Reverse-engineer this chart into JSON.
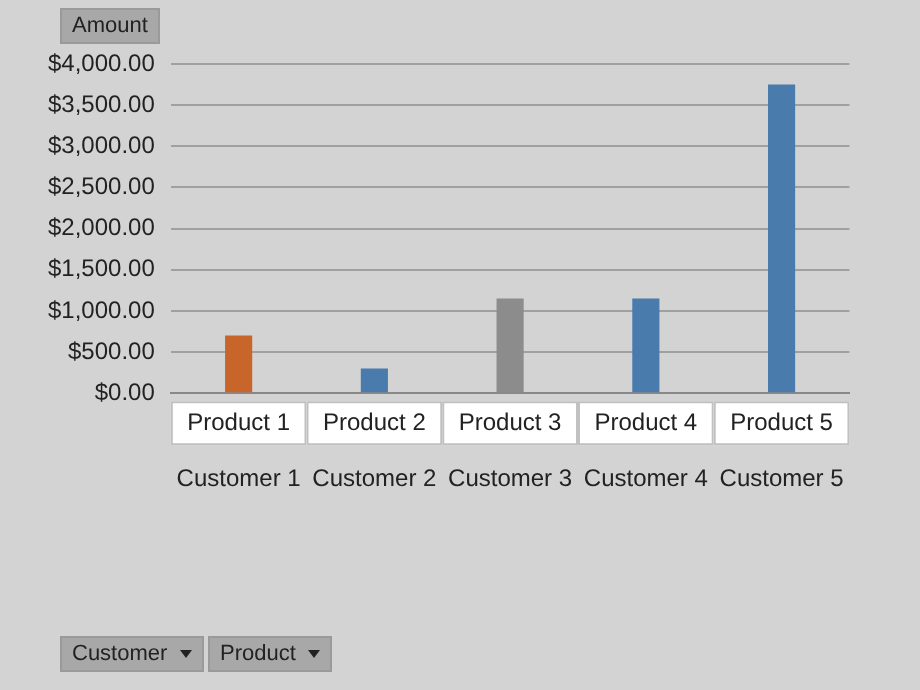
{
  "chart_data": {
    "type": "bar",
    "categories": [
      "Customer 1",
      "Customer 2",
      "Customer 3",
      "Customer 4",
      "Customer 5"
    ],
    "values": [
      700,
      300,
      1150,
      1150,
      3750
    ],
    "colors": [
      "#c8652a",
      "#4a7bad",
      "#8c8c8c",
      "#4a7bad",
      "#4a7bad"
    ],
    "ylim": [
      0,
      4000
    ],
    "yticks": [
      {
        "value": 0,
        "label": "$0.00"
      },
      {
        "value": 500,
        "label": "$500.00"
      },
      {
        "value": 1000,
        "label": "$1,000.00"
      },
      {
        "value": 1500,
        "label": "$1,500.00"
      },
      {
        "value": 2000,
        "label": "$2,000.00"
      },
      {
        "value": 2500,
        "label": "$2,500.00"
      },
      {
        "value": 3000,
        "label": "$3,000.00"
      },
      {
        "value": 3500,
        "label": "$3,500.00"
      },
      {
        "value": 4000,
        "label": "$4,000.00"
      }
    ],
    "grid": "y",
    "legend": false,
    "annotations": [
      "Product 1",
      "Product 2",
      "Product 3",
      "Product 4",
      "Product 5",
      "Amount",
      "Customer",
      "Product"
    ]
  }
}
